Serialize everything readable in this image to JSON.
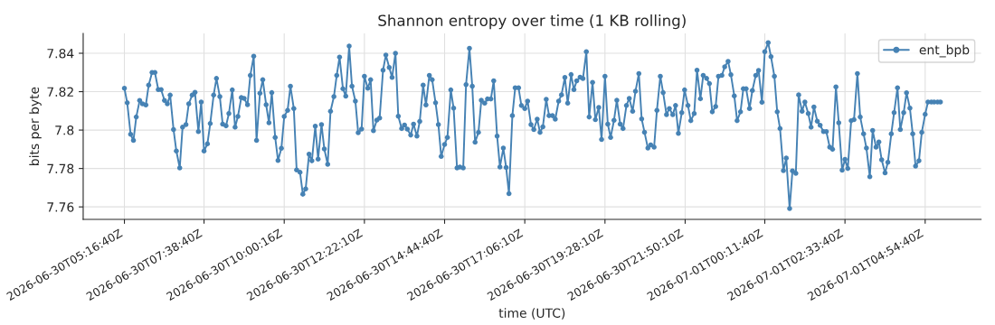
{
  "chart_data": {
    "type": "line",
    "title": "Shannon entropy over time (1 KB rolling)",
    "xlabel": "time (UTC)",
    "ylabel": "bits per byte",
    "x": [
      "2026-06-30T05:17",
      "2026-06-30T05:22",
      "2026-06-30T05:28",
      "2026-06-30T05:33",
      "2026-06-30T05:38",
      "2026-06-30T05:44",
      "2026-06-30T05:49",
      "2026-06-30T05:55",
      "2026-06-30T06:00",
      "2026-06-30T06:06",
      "2026-06-30T06:11",
      "2026-06-30T06:17",
      "2026-06-30T06:22",
      "2026-06-30T06:28",
      "2026-06-30T06:33",
      "2026-06-30T06:38",
      "2026-06-30T06:44",
      "2026-06-30T06:49",
      "2026-06-30T06:55",
      "2026-06-30T07:00",
      "2026-06-30T07:06",
      "2026-06-30T07:11",
      "2026-06-30T07:17",
      "2026-06-30T07:22",
      "2026-06-30T07:28",
      "2026-06-30T07:33",
      "2026-06-30T07:38",
      "2026-06-30T07:44",
      "2026-06-30T07:49",
      "2026-06-30T07:55",
      "2026-06-30T08:00",
      "2026-06-30T08:06",
      "2026-06-30T08:11",
      "2026-06-30T08:17",
      "2026-06-30T08:22",
      "2026-06-30T08:28",
      "2026-06-30T08:33",
      "2026-06-30T08:38",
      "2026-06-30T08:44",
      "2026-06-30T08:49",
      "2026-06-30T08:55",
      "2026-06-30T09:00",
      "2026-06-30T09:06",
      "2026-06-30T09:11",
      "2026-06-30T09:17",
      "2026-06-30T09:22",
      "2026-06-30T09:28",
      "2026-06-30T09:33",
      "2026-06-30T09:38",
      "2026-06-30T09:44",
      "2026-06-30T09:49",
      "2026-06-30T09:55",
      "2026-06-30T10:00",
      "2026-06-30T10:06",
      "2026-06-30T10:11",
      "2026-06-30T10:17",
      "2026-06-30T10:22",
      "2026-06-30T10:28",
      "2026-06-30T10:33",
      "2026-06-30T10:38",
      "2026-06-30T10:44",
      "2026-06-30T10:49",
      "2026-06-30T10:55",
      "2026-06-30T11:00",
      "2026-06-30T11:06",
      "2026-06-30T11:11",
      "2026-06-30T11:17",
      "2026-06-30T11:22",
      "2026-06-30T11:28",
      "2026-06-30T11:33",
      "2026-06-30T11:38",
      "2026-06-30T11:44",
      "2026-06-30T11:49",
      "2026-06-30T11:55",
      "2026-06-30T12:00",
      "2026-06-30T12:06",
      "2026-06-30T12:11",
      "2026-06-30T12:17",
      "2026-06-30T12:22",
      "2026-06-30T12:28",
      "2026-06-30T12:33",
      "2026-06-30T12:38",
      "2026-06-30T12:44",
      "2026-06-30T12:49",
      "2026-06-30T12:55",
      "2026-06-30T13:00",
      "2026-06-30T13:06",
      "2026-06-30T13:11",
      "2026-06-30T13:17",
      "2026-06-30T13:22",
      "2026-06-30T13:28",
      "2026-06-30T13:33",
      "2026-06-30T13:38",
      "2026-06-30T13:44",
      "2026-06-30T13:49",
      "2026-06-30T13:55",
      "2026-06-30T14:00",
      "2026-06-30T14:06",
      "2026-06-30T14:11",
      "2026-06-30T14:17",
      "2026-06-30T14:22",
      "2026-06-30T14:28",
      "2026-06-30T14:33",
      "2026-06-30T14:38",
      "2026-06-30T14:44",
      "2026-06-30T14:49",
      "2026-06-30T14:55",
      "2026-06-30T15:00",
      "2026-06-30T15:06",
      "2026-06-30T15:11",
      "2026-06-30T15:17",
      "2026-06-30T15:22",
      "2026-06-30T15:28",
      "2026-06-30T15:33",
      "2026-06-30T15:38",
      "2026-06-30T15:44",
      "2026-06-30T15:49",
      "2026-06-30T15:55",
      "2026-06-30T16:00",
      "2026-06-30T16:06",
      "2026-06-30T16:11",
      "2026-06-30T16:17",
      "2026-06-30T16:22",
      "2026-06-30T16:28",
      "2026-06-30T16:33",
      "2026-06-30T16:38",
      "2026-06-30T16:44",
      "2026-06-30T16:49",
      "2026-06-30T16:55",
      "2026-06-30T17:00",
      "2026-06-30T17:06",
      "2026-06-30T17:11",
      "2026-06-30T17:17",
      "2026-06-30T17:22",
      "2026-06-30T17:28",
      "2026-06-30T17:33",
      "2026-06-30T17:38",
      "2026-06-30T17:44",
      "2026-06-30T17:49",
      "2026-06-30T17:55",
      "2026-06-30T18:00",
      "2026-06-30T18:06",
      "2026-06-30T18:11",
      "2026-06-30T18:17",
      "2026-06-30T18:22",
      "2026-06-30T18:28",
      "2026-06-30T18:33",
      "2026-06-30T18:38",
      "2026-06-30T18:44",
      "2026-06-30T18:49",
      "2026-06-30T18:55",
      "2026-06-30T19:00",
      "2026-06-30T19:06",
      "2026-06-30T19:11",
      "2026-06-30T19:17",
      "2026-06-30T19:22",
      "2026-06-30T19:28",
      "2026-06-30T19:33",
      "2026-06-30T19:38",
      "2026-06-30T19:44",
      "2026-06-30T19:49",
      "2026-06-30T19:55",
      "2026-06-30T20:00",
      "2026-06-30T20:06",
      "2026-06-30T20:11",
      "2026-06-30T20:17",
      "2026-06-30T20:22",
      "2026-06-30T20:28",
      "2026-06-30T20:33",
      "2026-06-30T20:38",
      "2026-06-30T20:44",
      "2026-06-30T20:49",
      "2026-06-30T20:55",
      "2026-06-30T21:00",
      "2026-06-30T21:06",
      "2026-06-30T21:11",
      "2026-06-30T21:17",
      "2026-06-30T21:22",
      "2026-06-30T21:28",
      "2026-06-30T21:33",
      "2026-06-30T21:38",
      "2026-06-30T21:44",
      "2026-06-30T21:49",
      "2026-06-30T21:55",
      "2026-06-30T22:00",
      "2026-06-30T22:06",
      "2026-06-30T22:11",
      "2026-06-30T22:17",
      "2026-06-30T22:22",
      "2026-06-30T22:28",
      "2026-06-30T22:33",
      "2026-06-30T22:38",
      "2026-06-30T22:44",
      "2026-06-30T22:49",
      "2026-06-30T22:55",
      "2026-06-30T23:00",
      "2026-06-30T23:06",
      "2026-06-30T23:11",
      "2026-06-30T23:17",
      "2026-06-30T23:22",
      "2026-06-30T23:28",
      "2026-06-30T23:33",
      "2026-06-30T23:38",
      "2026-06-30T23:44",
      "2026-06-30T23:49",
      "2026-06-30T23:55",
      "2026-07-01T00:00",
      "2026-07-01T00:06",
      "2026-07-01T00:11",
      "2026-07-01T00:17",
      "2026-07-01T00:22",
      "2026-07-01T00:28",
      "2026-07-01T00:33",
      "2026-07-01T00:38",
      "2026-07-01T00:44",
      "2026-07-01T00:49",
      "2026-07-01T00:55",
      "2026-07-01T01:00",
      "2026-07-01T01:06",
      "2026-07-01T01:11",
      "2026-07-01T01:17",
      "2026-07-01T01:22",
      "2026-07-01T01:28",
      "2026-07-01T01:33",
      "2026-07-01T01:38",
      "2026-07-01T01:44",
      "2026-07-01T01:49",
      "2026-07-01T01:55",
      "2026-07-01T02:00",
      "2026-07-01T02:06",
      "2026-07-01T02:11",
      "2026-07-01T02:17",
      "2026-07-01T02:22",
      "2026-07-01T02:28",
      "2026-07-01T02:33",
      "2026-07-01T02:38",
      "2026-07-01T02:44",
      "2026-07-01T02:49",
      "2026-07-01T02:55",
      "2026-07-01T03:00",
      "2026-07-01T03:06",
      "2026-07-01T03:11",
      "2026-07-01T03:17",
      "2026-07-01T03:22",
      "2026-07-01T03:28",
      "2026-07-01T03:33",
      "2026-07-01T03:38",
      "2026-07-01T03:44",
      "2026-07-01T03:49",
      "2026-07-01T03:55",
      "2026-07-01T04:00",
      "2026-07-01T04:06",
      "2026-07-01T04:11",
      "2026-07-01T04:17",
      "2026-07-01T04:22",
      "2026-07-01T04:28",
      "2026-07-01T04:33",
      "2026-07-01T04:38",
      "2026-07-01T04:44",
      "2026-07-01T04:49",
      "2026-07-01T04:55",
      "2026-07-01T05:00",
      "2026-07-01T05:06",
      "2026-07-01T05:11",
      "2026-07-01T05:17",
      "2026-07-01T05:22"
    ],
    "xlim": [
      "2026-06-30T04:04",
      "2026-07-01T06:34"
    ],
    "xticks": [
      {
        "value": "2026-06-30T05:17",
        "label": "2026-06-30T05:16:40Z"
      },
      {
        "value": "2026-06-30T07:38",
        "label": "2026-06-30T07:38:40Z"
      },
      {
        "value": "2026-06-30T10:00",
        "label": "2026-06-30T10:00:16Z"
      },
      {
        "value": "2026-06-30T12:22",
        "label": "2026-06-30T12:22:10Z"
      },
      {
        "value": "2026-06-30T14:44",
        "label": "2026-06-30T14:44:40Z"
      },
      {
        "value": "2026-06-30T17:06",
        "label": "2026-06-30T17:06:10Z"
      },
      {
        "value": "2026-06-30T19:28",
        "label": "2026-06-30T19:28:10Z"
      },
      {
        "value": "2026-06-30T21:50",
        "label": "2026-06-30T21:50:10Z"
      },
      {
        "value": "2026-07-01T00:11",
        "label": "2026-07-01T00:11:40Z"
      },
      {
        "value": "2026-07-01T02:33",
        "label": "2026-07-01T02:33:40Z"
      },
      {
        "value": "2026-07-01T04:55",
        "label": "2026-07-01T04:54:40Z"
      }
    ],
    "series": [
      {
        "name": "ent_bpb",
        "color": "#4682b4",
        "values": [
          7.8218,
          7.8142,
          7.7978,
          7.7946,
          7.8068,
          7.8154,
          7.8137,
          7.8131,
          7.8234,
          7.83,
          7.83,
          7.8211,
          7.8211,
          7.8154,
          7.8137,
          7.8182,
          7.8003,
          7.7891,
          7.7803,
          7.8015,
          7.8029,
          7.8137,
          7.8182,
          7.8197,
          7.7992,
          7.8146,
          7.7891,
          7.7928,
          7.8034,
          7.8182,
          7.8269,
          7.8174,
          7.8031,
          7.8022,
          7.8086,
          7.8209,
          7.8015,
          7.8071,
          7.8169,
          7.8165,
          7.8132,
          7.8285,
          7.8385,
          7.7946,
          7.8192,
          7.8262,
          7.8132,
          7.8038,
          7.8195,
          7.7962,
          7.7842,
          7.7905,
          7.8071,
          7.8103,
          7.8228,
          7.8112,
          7.7792,
          7.778,
          7.7666,
          7.7694,
          7.7875,
          7.784,
          7.802,
          7.7849,
          7.8029,
          7.7902,
          7.7822,
          7.8098,
          7.8174,
          7.8285,
          7.838,
          7.8215,
          7.8177,
          7.8437,
          7.8228,
          7.8151,
          7.7986,
          7.8005,
          7.828,
          7.8218,
          7.8262,
          7.7997,
          7.8052,
          7.8063,
          7.8312,
          7.8391,
          7.8326,
          7.8274,
          7.84,
          7.8072,
          7.8008,
          7.8026,
          7.8005,
          7.7974,
          7.8031,
          7.7969,
          7.8045,
          7.8234,
          7.8131,
          7.8285,
          7.8262,
          7.8142,
          7.8029,
          7.7863,
          7.7925,
          7.7962,
          7.8209,
          7.8114,
          7.7803,
          7.7808,
          7.7803,
          7.8237,
          7.8426,
          7.8228,
          7.7937,
          7.7988,
          7.8155,
          7.814,
          7.8162,
          7.8162,
          7.8257,
          7.7969,
          7.7808,
          7.7906,
          7.7805,
          7.7669,
          7.8075,
          7.822,
          7.822,
          7.8128,
          7.8112,
          7.8151,
          7.8029,
          7.8003,
          7.8057,
          7.7988,
          7.8017,
          7.816,
          7.8075,
          7.8075,
          7.8057,
          7.8151,
          7.8183,
          7.8274,
          7.814,
          7.8289,
          7.8211,
          7.8257,
          7.8275,
          7.8268,
          7.8408,
          7.8068,
          7.8248,
          7.8054,
          7.8118,
          7.7951,
          7.828,
          7.8031,
          7.7962,
          7.8051,
          7.8155,
          7.8031,
          7.8008,
          7.8128,
          7.8165,
          7.8098,
          7.8202,
          7.8294,
          7.8058,
          7.7989,
          7.7906,
          7.7923,
          7.7911,
          7.8103,
          7.828,
          7.8195,
          7.808,
          7.8112,
          7.808,
          7.8128,
          7.7983,
          7.8091,
          7.8209,
          7.8128,
          7.8049,
          7.8086,
          7.8312,
          7.8163,
          7.8285,
          7.8269,
          7.8242,
          7.8095,
          7.8123,
          7.828,
          7.8285,
          7.8329,
          7.8358,
          7.8288,
          7.8178,
          7.8049,
          7.8095,
          7.8215,
          7.8215,
          7.8112,
          7.8206,
          7.8285,
          7.8311,
          7.8145,
          7.8408,
          7.8455,
          7.8382,
          7.828,
          7.8095,
          7.8008,
          7.7789,
          7.7854,
          7.7591,
          7.7788,
          7.7775,
          7.8183,
          7.8098,
          7.8146,
          7.8086,
          7.8015,
          7.812,
          7.8046,
          7.8025,
          7.7992,
          7.7992,
          7.7911,
          7.79,
          7.8225,
          7.8038,
          7.7791,
          7.7848,
          7.78,
          7.8049,
          7.8054,
          7.8294,
          7.8068,
          7.798,
          7.7906,
          7.7757,
          7.7998,
          7.7911,
          7.7938,
          7.7845,
          7.7777,
          7.7832,
          7.798,
          7.8091,
          7.822,
          7.8003,
          7.8091,
          7.8194,
          7.8114,
          7.798,
          7.7812,
          7.784,
          7.7988,
          7.8082,
          7.8146,
          7.8146,
          7.8146,
          7.8146,
          7.8146
        ]
      }
    ],
    "ylim": [
      7.7535,
      7.8503
    ],
    "yticks": [
      7.76,
      7.78,
      7.8,
      7.82,
      7.84
    ],
    "grid": true,
    "legend": "top right",
    "marker": "circle",
    "line_style": "solid"
  }
}
